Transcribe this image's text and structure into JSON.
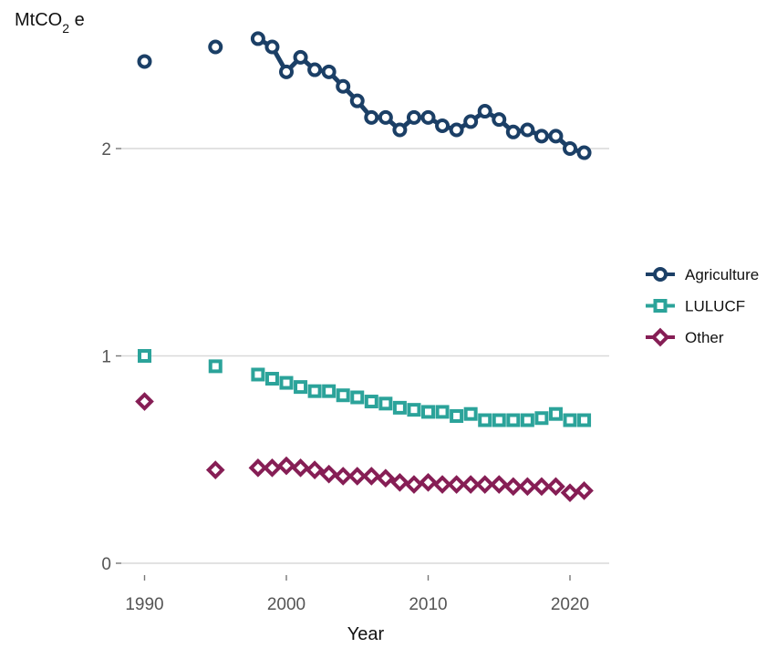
{
  "chart_data": {
    "type": "line",
    "title": "",
    "xlabel": "Year",
    "ylabel": {
      "base": "MtCO",
      "sub": "2",
      "suffix": " e"
    },
    "xlim": [
      1989,
      2022
    ],
    "ylim": [
      0,
      2.6
    ],
    "xticks": [
      1990,
      2000,
      2010,
      2020
    ],
    "yticks": [
      0,
      1,
      2
    ],
    "grid": "horizontal",
    "legend_position": "right",
    "series": [
      {
        "name": "Agriculture",
        "color": "#1b3f66",
        "marker": "circle",
        "points": [
          [
            1990,
            2.42
          ],
          [
            1995,
            2.49
          ],
          [
            1998,
            2.53
          ],
          [
            1999,
            2.49
          ],
          [
            2000,
            2.37
          ],
          [
            2001,
            2.44
          ],
          [
            2002,
            2.38
          ],
          [
            2003,
            2.37
          ],
          [
            2004,
            2.3
          ],
          [
            2005,
            2.23
          ],
          [
            2006,
            2.15
          ],
          [
            2007,
            2.15
          ],
          [
            2008,
            2.09
          ],
          [
            2009,
            2.15
          ],
          [
            2010,
            2.15
          ],
          [
            2011,
            2.11
          ],
          [
            2012,
            2.09
          ],
          [
            2013,
            2.13
          ],
          [
            2014,
            2.18
          ],
          [
            2015,
            2.14
          ],
          [
            2016,
            2.08
          ],
          [
            2017,
            2.09
          ],
          [
            2018,
            2.06
          ],
          [
            2019,
            2.06
          ],
          [
            2020,
            2.0
          ],
          [
            2021,
            1.98
          ]
        ],
        "line_from": 1998
      },
      {
        "name": "LULUCF",
        "color": "#2ba39a",
        "marker": "square",
        "points": [
          [
            1990,
            1.0
          ],
          [
            1995,
            0.95
          ],
          [
            1998,
            0.91
          ],
          [
            1999,
            0.89
          ],
          [
            2000,
            0.87
          ],
          [
            2001,
            0.85
          ],
          [
            2002,
            0.83
          ],
          [
            2003,
            0.83
          ],
          [
            2004,
            0.81
          ],
          [
            2005,
            0.8
          ],
          [
            2006,
            0.78
          ],
          [
            2007,
            0.77
          ],
          [
            2008,
            0.75
          ],
          [
            2009,
            0.74
          ],
          [
            2010,
            0.73
          ],
          [
            2011,
            0.73
          ],
          [
            2012,
            0.71
          ],
          [
            2013,
            0.72
          ],
          [
            2014,
            0.69
          ],
          [
            2015,
            0.69
          ],
          [
            2016,
            0.69
          ],
          [
            2017,
            0.69
          ],
          [
            2018,
            0.7
          ],
          [
            2019,
            0.72
          ],
          [
            2020,
            0.69
          ],
          [
            2021,
            0.69
          ]
        ]
      },
      {
        "name": "Other",
        "color": "#861e55",
        "marker": "diamond",
        "points": [
          [
            1990,
            0.78
          ],
          [
            1995,
            0.45
          ],
          [
            1998,
            0.46
          ],
          [
            1999,
            0.46
          ],
          [
            2000,
            0.47
          ],
          [
            2001,
            0.46
          ],
          [
            2002,
            0.45
          ],
          [
            2003,
            0.43
          ],
          [
            2004,
            0.42
          ],
          [
            2005,
            0.42
          ],
          [
            2006,
            0.42
          ],
          [
            2007,
            0.41
          ],
          [
            2008,
            0.39
          ],
          [
            2009,
            0.38
          ],
          [
            2010,
            0.39
          ],
          [
            2011,
            0.38
          ],
          [
            2012,
            0.38
          ],
          [
            2013,
            0.38
          ],
          [
            2014,
            0.38
          ],
          [
            2015,
            0.38
          ],
          [
            2016,
            0.37
          ],
          [
            2017,
            0.37
          ],
          [
            2018,
            0.37
          ],
          [
            2019,
            0.37
          ],
          [
            2020,
            0.34
          ],
          [
            2021,
            0.35
          ]
        ]
      }
    ]
  }
}
